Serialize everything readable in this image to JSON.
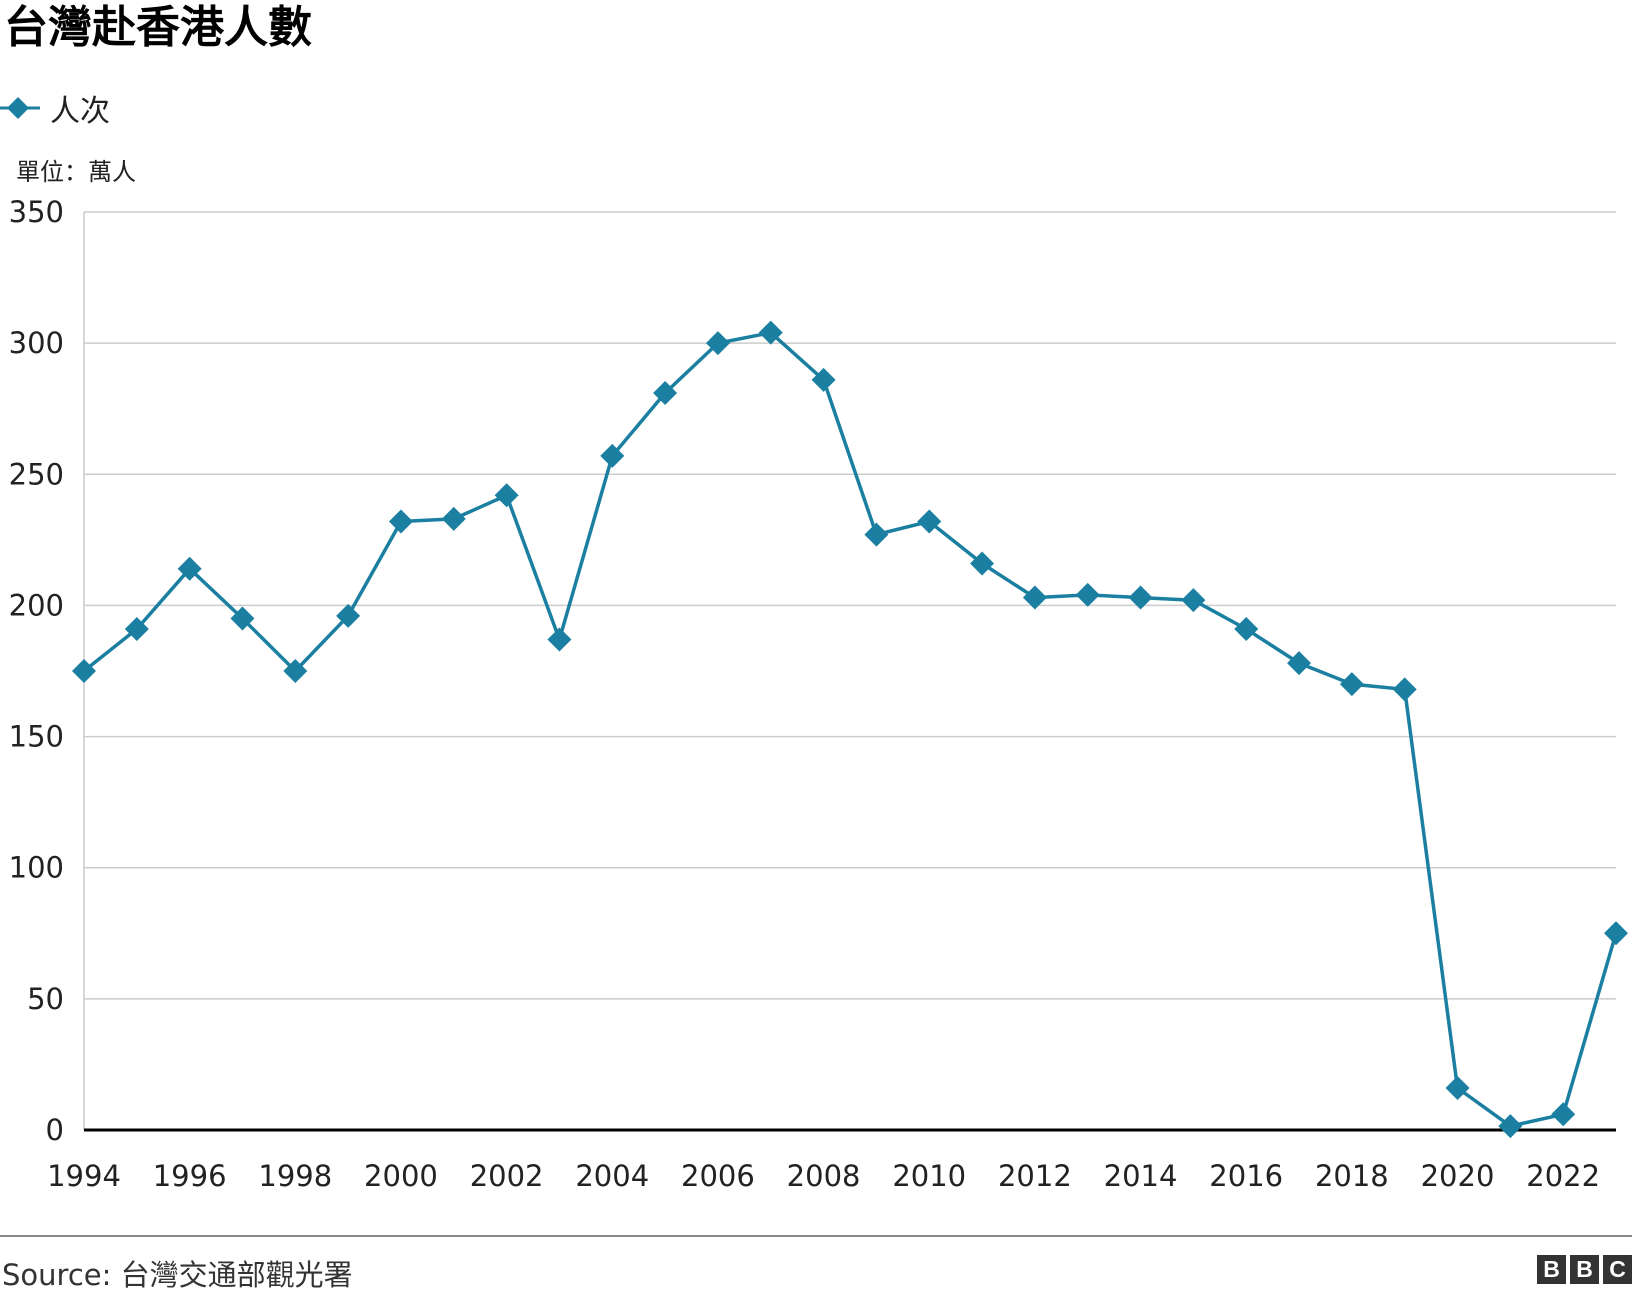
{
  "title": "台灣赴香港人數",
  "unit_note": "單位：萬人",
  "source": "Source: 台灣交通部觀光署",
  "logo": [
    "B",
    "B",
    "C"
  ],
  "colors": {
    "series": "#1a7fa0",
    "grid": "#cccccc",
    "baseline": "#000000",
    "text": "#222222"
  },
  "chart_data": {
    "type": "line",
    "title": "台灣赴香港人數",
    "xlabel": "",
    "ylabel": "",
    "ylim": [
      0,
      350
    ],
    "xlim": [
      1994,
      2023
    ],
    "yticks": [
      0,
      50,
      100,
      150,
      200,
      250,
      300,
      350
    ],
    "xticks": [
      1994,
      1996,
      1998,
      2000,
      2002,
      2004,
      2006,
      2008,
      2010,
      2012,
      2014,
      2016,
      2018,
      2020,
      2022
    ],
    "grid": true,
    "legend_position": "top-left",
    "marker": "diamond",
    "series": [
      {
        "name": "人次",
        "x": [
          1994,
          1995,
          1996,
          1997,
          1998,
          1999,
          2000,
          2001,
          2002,
          2003,
          2004,
          2005,
          2006,
          2007,
          2008,
          2009,
          2010,
          2011,
          2012,
          2013,
          2014,
          2015,
          2016,
          2017,
          2018,
          2019,
          2020,
          2021,
          2022,
          2023
        ],
        "values": [
          175,
          191,
          214,
          195,
          175,
          196,
          232,
          233,
          242,
          187,
          257,
          281,
          300,
          304,
          286,
          227,
          232,
          216,
          203,
          204,
          203,
          202,
          191,
          178,
          170,
          168,
          16,
          1.5,
          6,
          75
        ]
      }
    ]
  }
}
